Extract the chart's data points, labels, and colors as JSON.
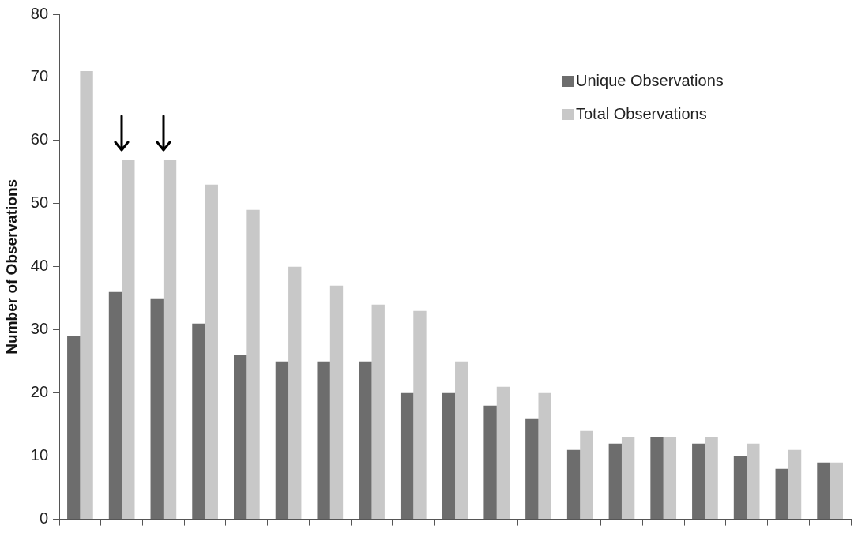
{
  "chart_data": {
    "type": "bar",
    "ylabel": "Number of Observations",
    "categories": [
      null,
      null,
      null,
      null,
      null,
      null,
      null,
      null,
      null,
      null,
      null,
      null,
      null,
      null,
      null,
      null,
      null,
      null,
      null
    ],
    "series": [
      {
        "name": "Unique Observations",
        "color": "#6d6d6d",
        "values": [
          29,
          36,
          35,
          31,
          26,
          25,
          25,
          25,
          20,
          20,
          18,
          16,
          11,
          12,
          13,
          12,
          10,
          8,
          9
        ]
      },
      {
        "name": "Total Observations",
        "color": "#c8c8c8",
        "values": [
          71,
          57,
          57,
          53,
          49,
          40,
          37,
          34,
          33,
          25,
          21,
          20,
          14,
          13,
          13,
          13,
          12,
          11,
          9
        ]
      }
    ],
    "ylim": [
      0,
      80
    ],
    "yticks": [
      0,
      10,
      20,
      30,
      40,
      50,
      60,
      70,
      80
    ],
    "grid": false,
    "legend": "top right"
  }
}
